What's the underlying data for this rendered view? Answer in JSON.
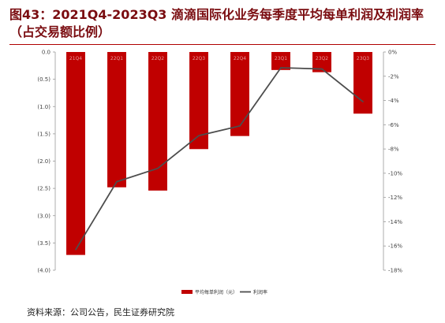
{
  "header": {
    "title": "图43：2021Q4-2023Q3 滴滴国际化业务每季度平均每单利润及利润率（占交易额比例）"
  },
  "source": "资料来源：公司公告，民生证券研究院",
  "colors": {
    "bar": "#c00000",
    "line": "#4d4d4d",
    "title": "#7a0c10"
  },
  "chart_data": {
    "type": "bar",
    "categories": [
      "21Q4",
      "22Q1",
      "22Q2",
      "22Q3",
      "22Q4",
      "23Q1",
      "23Q2",
      "23Q3"
    ],
    "series": [
      {
        "name": "平均每单利润（元）",
        "type": "bar",
        "axis": "left",
        "values": [
          -3.72,
          -2.48,
          -2.54,
          -1.78,
          -1.54,
          -0.33,
          -0.37,
          -1.13
        ]
      },
      {
        "name": "利润率",
        "type": "line",
        "axis": "right",
        "values": [
          -16.3,
          -10.7,
          -9.6,
          -6.9,
          -6.1,
          -1.3,
          -1.4,
          -4.1
        ]
      }
    ],
    "y_left": {
      "ylim": [
        -4.0,
        0.0
      ],
      "ticks": [
        0.0,
        -0.5,
        -1.0,
        -1.5,
        -2.0,
        -2.5,
        -3.0,
        -3.5,
        -4.0
      ],
      "tick_labels": [
        "0.0",
        "(0.5)",
        "(1.0)",
        "(1.5)",
        "(2.0)",
        "(2.5)",
        "(3.0)",
        "(3.5)",
        "(4.0)"
      ]
    },
    "y_right": {
      "ylim": [
        -18,
        0
      ],
      "ticks": [
        0,
        -2,
        -4,
        -6,
        -8,
        -10,
        -12,
        -14,
        -16,
        -18
      ],
      "tick_labels": [
        "0%",
        "-2%",
        "-4%",
        "-6%",
        "-8%",
        "-10%",
        "-12%",
        "-14%",
        "-16%",
        "-18%"
      ]
    },
    "grid": false,
    "legend": "bottom-center"
  }
}
